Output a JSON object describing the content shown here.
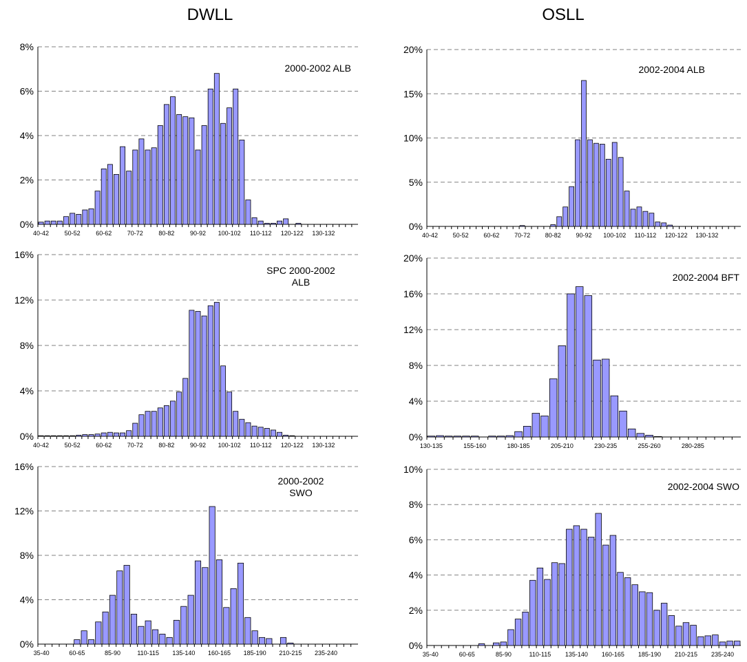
{
  "column_titles": [
    "DWLL",
    "OSLL"
  ],
  "colors": {
    "bar_fill": "#9999FF",
    "bar_stroke": "#000000",
    "grid": "#808080"
  },
  "chart_data": [
    {
      "type": "bar",
      "annotation": [
        "2000-2002 ALB"
      ],
      "categories": [
        "40-42",
        "",
        "",
        "",
        "",
        "50-52",
        "",
        "",
        "",
        "",
        "60-62",
        "",
        "",
        "",
        "",
        "70-72",
        "",
        "",
        "",
        "",
        "80-82",
        "",
        "",
        "",
        "",
        "90-92",
        "",
        "",
        "",
        "",
        "100-102",
        "",
        "",
        "",
        "",
        "110-112",
        "",
        "",
        "",
        "",
        "120-122",
        "",
        "",
        "",
        "",
        "130-132",
        "",
        "",
        "",
        "",
        ""
      ],
      "values": [
        0.1,
        0.15,
        0.15,
        0.15,
        0.35,
        0.5,
        0.45,
        0.65,
        0.7,
        1.5,
        2.5,
        2.7,
        2.25,
        3.5,
        2.4,
        3.35,
        3.85,
        3.35,
        3.45,
        4.45,
        5.4,
        5.75,
        4.95,
        4.85,
        4.8,
        3.35,
        4.45,
        6.1,
        6.8,
        4.55,
        5.25,
        6.1,
        3.8,
        1.1,
        0.3,
        0.15,
        0.05,
        0.05,
        0.15,
        0.25,
        0,
        0.05,
        0,
        0,
        0,
        0,
        0,
        0,
        0,
        0,
        0
      ],
      "ylim": [
        0,
        8
      ],
      "yticks": [
        "0%",
        "2%",
        "4%",
        "6%",
        "8%"
      ]
    },
    {
      "type": "bar",
      "annotation": [
        "2002-2004 ALB"
      ],
      "categories": [
        "40-42",
        "",
        "",
        "",
        "",
        "50-52",
        "",
        "",
        "",
        "",
        "60-62",
        "",
        "",
        "",
        "",
        "70-72",
        "",
        "",
        "",
        "",
        "80-82",
        "",
        "",
        "",
        "",
        "90-92",
        "",
        "",
        "",
        "",
        "100-102",
        "",
        "",
        "",
        "",
        "110-112",
        "",
        "",
        "",
        "",
        "120-122",
        "",
        "",
        "",
        "",
        "130-132",
        "",
        "",
        "",
        "",
        ""
      ],
      "values": [
        0,
        0,
        0,
        0,
        0,
        0,
        0,
        0,
        0,
        0,
        0,
        0,
        0,
        0,
        0,
        0.1,
        0,
        0,
        0,
        0,
        0.2,
        1.1,
        2.2,
        4.5,
        9.8,
        16.5,
        9.8,
        9.4,
        9.3,
        7.6,
        9.5,
        7.8,
        4.0,
        1.95,
        2.2,
        1.7,
        1.5,
        0.5,
        0.4,
        0.15,
        0,
        0,
        0,
        0,
        0,
        0,
        0,
        0,
        0,
        0,
        0
      ],
      "ylim": [
        0,
        20
      ],
      "yticks": [
        "0%",
        "5%",
        "10%",
        "15%",
        "20%"
      ]
    },
    {
      "type": "bar",
      "annotation": [
        "SPC 2000-2002",
        "ALB"
      ],
      "categories": [
        "40-42",
        "",
        "",
        "",
        "",
        "50-52",
        "",
        "",
        "",
        "",
        "60-62",
        "",
        "",
        "",
        "",
        "70-72",
        "",
        "",
        "",
        "",
        "80-82",
        "",
        "",
        "",
        "",
        "90-92",
        "",
        "",
        "",
        "",
        "100-102",
        "",
        "",
        "",
        "",
        "110-112",
        "",
        "",
        "",
        "",
        "120-122",
        "",
        "",
        "",
        "",
        "130-132",
        "",
        "",
        "",
        "",
        ""
      ],
      "values": [
        0.05,
        0.05,
        0.05,
        0.05,
        0.05,
        0.05,
        0.1,
        0.15,
        0.15,
        0.2,
        0.3,
        0.35,
        0.3,
        0.3,
        0.5,
        1.15,
        1.9,
        2.2,
        2.2,
        2.5,
        2.7,
        3.1,
        3.9,
        5.1,
        11.1,
        11.0,
        10.6,
        11.5,
        11.8,
        6.2,
        3.9,
        2.2,
        1.5,
        1.2,
        0.9,
        0.8,
        0.7,
        0.55,
        0.35,
        0.1,
        0.05,
        0,
        0,
        0,
        0,
        0,
        0,
        0,
        0,
        0,
        0
      ],
      "ylim": [
        0,
        16
      ],
      "yticks": [
        "0%",
        "4%",
        "8%",
        "12%",
        "16%"
      ]
    },
    {
      "type": "bar",
      "annotation": [
        "2002-2004 BFT"
      ],
      "categories": [
        "130-135",
        "",
        "",
        "",
        "",
        "155-160",
        "",
        "",
        "",
        "",
        "180-185",
        "",
        "",
        "",
        "",
        "205-210",
        "",
        "",
        "",
        "",
        "230-235",
        "",
        "",
        "",
        "",
        "255-260",
        "",
        "",
        "",
        "",
        "280-285",
        "",
        "",
        "",
        "",
        ""
      ],
      "values": [
        0.1,
        0.15,
        0.1,
        0.1,
        0.1,
        0.1,
        0,
        0.1,
        0.1,
        0.15,
        0.6,
        1.2,
        2.65,
        2.35,
        6.5,
        10.2,
        16.0,
        16.8,
        15.8,
        8.6,
        8.7,
        4.6,
        2.9,
        0.9,
        0.4,
        0.2,
        0.05,
        0,
        0,
        0,
        0,
        0,
        0,
        0,
        0,
        0
      ],
      "ylim": [
        0,
        20
      ],
      "yticks": [
        "0%",
        "4%",
        "8%",
        "12%",
        "16%",
        "20%"
      ]
    },
    {
      "type": "bar",
      "annotation": [
        "2000-2002",
        "SWO"
      ],
      "categories": [
        "35-40",
        "",
        "",
        "",
        "",
        "60-65",
        "",
        "",
        "",
        "",
        "85-90",
        "",
        "",
        "",
        "",
        "110-115",
        "",
        "",
        "",
        "",
        "135-140",
        "",
        "",
        "",
        "",
        "160-165",
        "",
        "",
        "",
        "",
        "185-190",
        "",
        "",
        "",
        "",
        "210-215",
        "",
        "",
        "",
        "",
        "235-240",
        "",
        "",
        "",
        ""
      ],
      "values": [
        0,
        0,
        0,
        0,
        0,
        0.4,
        1.2,
        0.4,
        2.0,
        2.9,
        4.4,
        6.6,
        7.1,
        2.7,
        1.6,
        2.1,
        1.3,
        0.9,
        0.6,
        2.15,
        3.4,
        4.4,
        7.5,
        6.9,
        12.4,
        7.6,
        3.3,
        5.0,
        7.3,
        2.4,
        1.2,
        0.6,
        0.5,
        0,
        0.6,
        0.1,
        0,
        0,
        0,
        0,
        0,
        0,
        0,
        0,
        0
      ],
      "ylim": [
        0,
        16
      ],
      "yticks": [
        "0%",
        "4%",
        "8%",
        "12%",
        "16%"
      ]
    },
    {
      "type": "bar",
      "annotation": [
        "2002-2004 SWO"
      ],
      "categories": [
        "35-40",
        "",
        "",
        "",
        "",
        "60-65",
        "",
        "",
        "",
        "",
        "85-90",
        "",
        "",
        "",
        "",
        "110-115",
        "",
        "",
        "",
        "",
        "135-140",
        "",
        "",
        "",
        "",
        "160-165",
        "",
        "",
        "",
        "",
        "185-190",
        "",
        "",
        "",
        "",
        "210-215",
        "",
        "",
        "",
        "",
        "235-240",
        "",
        ""
      ],
      "values": [
        0,
        0,
        0,
        0,
        0,
        0,
        0,
        0.1,
        0,
        0.15,
        0.2,
        0.9,
        1.5,
        1.9,
        3.7,
        4.4,
        3.75,
        4.7,
        4.65,
        6.6,
        6.8,
        6.6,
        6.15,
        7.5,
        5.7,
        6.25,
        4.15,
        3.85,
        3.45,
        3.05,
        3.0,
        2.0,
        2.4,
        1.7,
        1.1,
        1.3,
        1.15,
        0.5,
        0.55,
        0.6,
        0.2,
        0.25,
        0.25
      ],
      "ylim": [
        0,
        10
      ],
      "yticks": [
        "0%",
        "2%",
        "4%",
        "6%",
        "8%",
        "10%"
      ]
    }
  ]
}
